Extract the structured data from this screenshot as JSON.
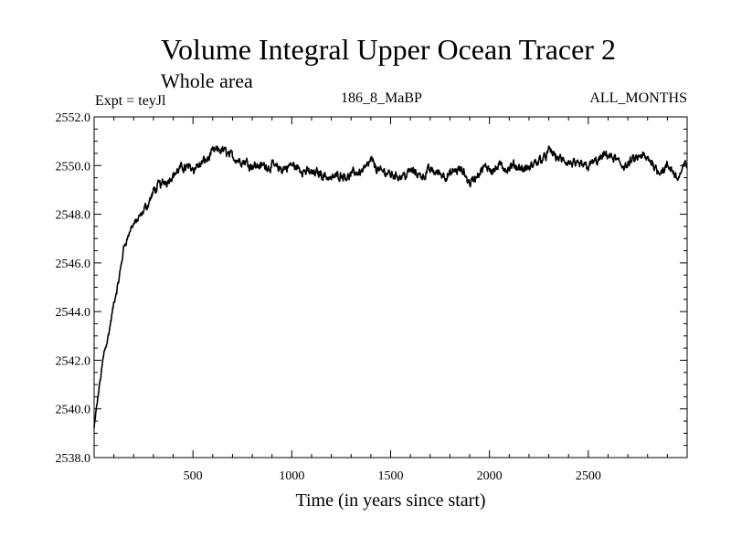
{
  "chart_data": {
    "type": "line",
    "title": "Volume Integral Upper Ocean Tracer 2",
    "subtitle": "Whole area",
    "left_label": "Expt = teyJl",
    "center_label": "186_8_MaBP",
    "right_label": "ALL_MONTHS",
    "xlabel": "Time (in years since start)",
    "ylabel": "",
    "xlim": [
      0,
      3000
    ],
    "ylim": [
      2538.0,
      2552.0
    ],
    "xticks": [
      500,
      1000,
      1500,
      2000,
      2500
    ],
    "xtick_labels": [
      "500",
      "1000",
      "1500",
      "2000",
      "2500"
    ],
    "yticks": [
      2538.0,
      2540.0,
      2542.0,
      2544.0,
      2546.0,
      2548.0,
      2550.0,
      2552.0
    ],
    "ytick_labels": [
      "2538.0",
      "2540.0",
      "2542.0",
      "2544.0",
      "2546.0",
      "2548.0",
      "2550.0",
      "2552.0"
    ],
    "series": [
      {
        "name": "Volume Integral Upper Ocean Tracer 2",
        "color": "#000000",
        "x": [
          0,
          25,
          50,
          75,
          100,
          125,
          150,
          175,
          200,
          250,
          300,
          350,
          400,
          450,
          500,
          550,
          600,
          650,
          700,
          750,
          800,
          850,
          900,
          950,
          1000,
          1050,
          1100,
          1150,
          1200,
          1250,
          1300,
          1350,
          1400,
          1450,
          1500,
          1550,
          1600,
          1650,
          1700,
          1750,
          1800,
          1850,
          1900,
          1950,
          2000,
          2050,
          2100,
          2150,
          2200,
          2250,
          2300,
          2350,
          2400,
          2450,
          2500,
          2550,
          2600,
          2650,
          2700,
          2750,
          2800,
          2850,
          2900,
          2950,
          3000
        ],
        "values": [
          2539.2,
          2540.8,
          2542.3,
          2543.2,
          2544.3,
          2545.2,
          2546.6,
          2547.2,
          2547.6,
          2548.0,
          2548.9,
          2549.3,
          2549.7,
          2549.9,
          2550.0,
          2550.1,
          2550.5,
          2550.6,
          2550.4,
          2550.2,
          2550.1,
          2550.0,
          2550.0,
          2549.8,
          2550.0,
          2549.8,
          2549.7,
          2549.7,
          2549.5,
          2549.7,
          2549.6,
          2549.8,
          2550.2,
          2549.7,
          2549.7,
          2549.6,
          2549.8,
          2549.6,
          2549.8,
          2549.7,
          2549.6,
          2549.8,
          2549.3,
          2549.7,
          2549.9,
          2550.0,
          2549.8,
          2549.9,
          2549.8,
          2550.2,
          2550.6,
          2550.3,
          2550.0,
          2549.9,
          2550.1,
          2550.2,
          2550.4,
          2550.1,
          2550.0,
          2550.3,
          2550.2,
          2549.9,
          2549.9,
          2549.5,
          2550.1
        ]
      }
    ]
  }
}
